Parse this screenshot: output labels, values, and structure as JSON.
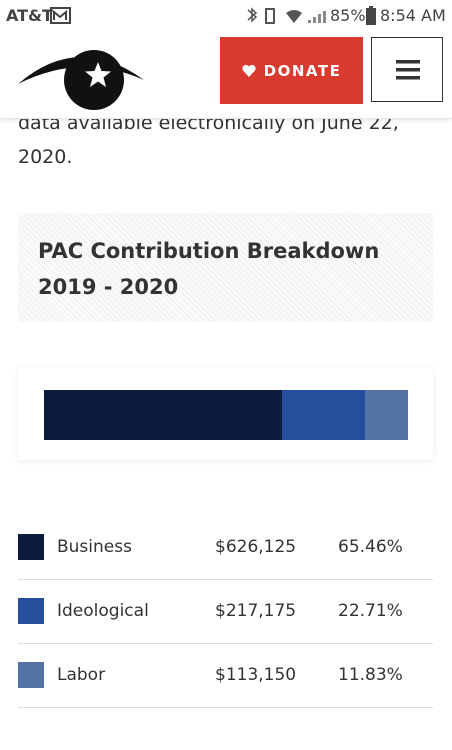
{
  "status_bar": {
    "carrier": "AT&T",
    "battery": "85%",
    "time": "8:54 AM"
  },
  "header": {
    "donate": "DONATE"
  },
  "intro_text": "data available electronically on June 22, 2020.",
  "card": {
    "title": "PAC Contribution Breakdown 2019 - 2020"
  },
  "breakdown": {
    "rows": [
      {
        "name": "Business",
        "color": "#0c1c3f",
        "value": 626125,
        "value_label": "$626,125",
        "percent": 65.46,
        "percent_label": "65.46%"
      },
      {
        "name": "Ideological",
        "color": "#254e9c",
        "value": 217175,
        "value_label": "$217,175",
        "percent": 22.71,
        "percent_label": "22.71%"
      },
      {
        "name": "Labor",
        "color": "#5573a5",
        "value": 113150,
        "value_label": "$113,150",
        "percent": 11.83,
        "percent_label": "11.83%"
      }
    ]
  }
}
